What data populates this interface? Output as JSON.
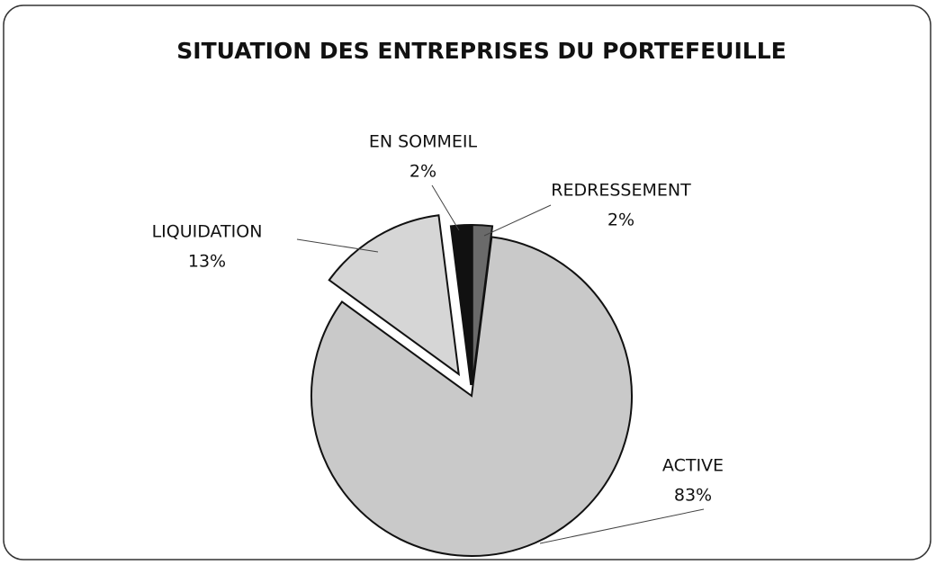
{
  "chart_data": {
    "type": "pie",
    "title": "SITUATION DES ENTREPRISES DU PORTEFEUILLE",
    "categories": [
      "REDRESSEMENT",
      "ACTIVE",
      "LIQUIDATION",
      "EN SOMMEIL"
    ],
    "values": [
      2,
      83,
      13,
      2
    ],
    "value_labels": [
      "2%",
      "83%",
      "13%",
      "2%"
    ],
    "colors": [
      "#6a6a6a",
      "#c9c9c9",
      "#d6d6d6",
      "#111111"
    ]
  }
}
